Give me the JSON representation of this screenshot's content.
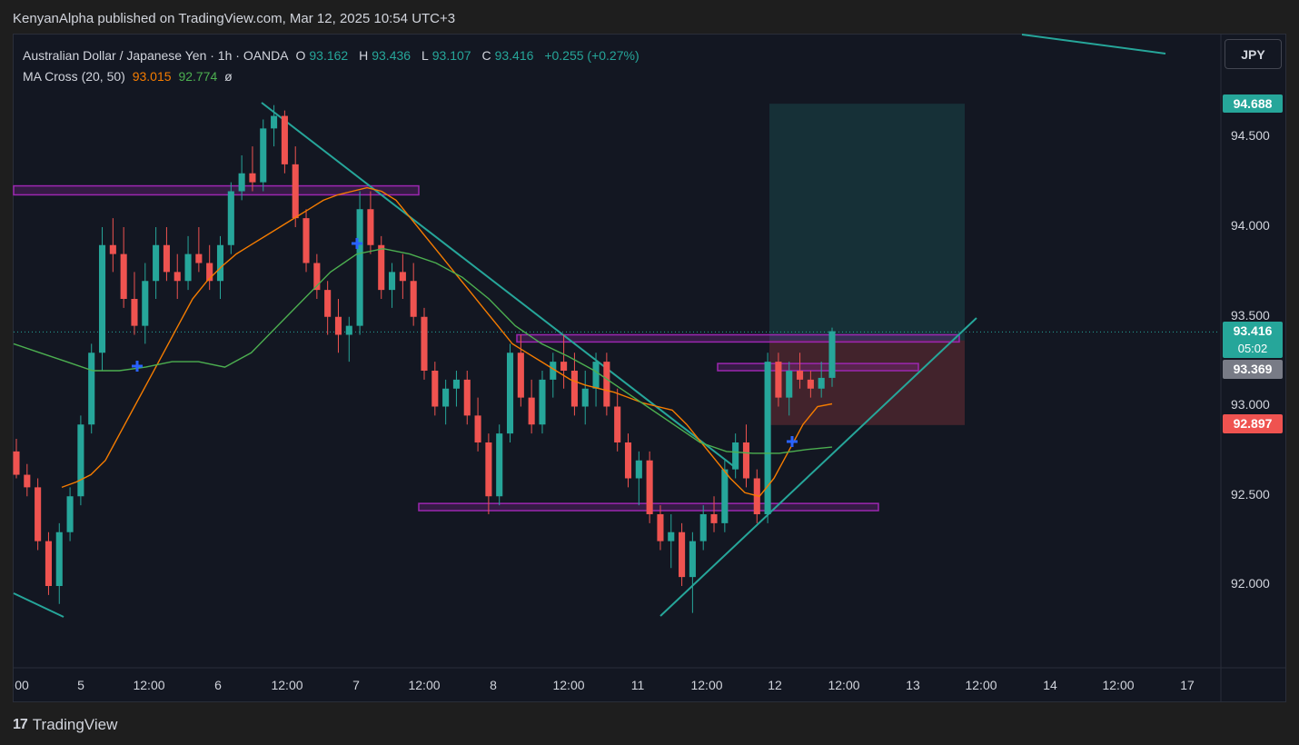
{
  "header": {
    "published": "KenyanAlpha published on TradingView.com, Mar 12, 2025 10:54 UTC+3"
  },
  "legend": {
    "symbol": "Australian Dollar / Japanese Yen · 1h · OANDA",
    "o_label": "O",
    "o_value": "93.162",
    "h_label": "H",
    "h_value": "93.436",
    "l_label": "L",
    "l_value": "93.107",
    "c_label": "C",
    "c_value": "93.416",
    "change": "+0.255 (+0.27%)",
    "ma_label": "MA Cross (20, 50)",
    "ma_fast": "93.015",
    "ma_slow": "92.774",
    "ma_extra": "ø"
  },
  "currency_button": "JPY",
  "price_tags": {
    "target": "94.688",
    "last_price": "93.416",
    "countdown": "05:02",
    "entry": "93.369",
    "stop": "92.897"
  },
  "colors": {
    "up": "#26a69a",
    "down": "#ef5350",
    "ma_fast": "#f57c00",
    "ma_slow": "#4caf50",
    "zone": "#9c27b0",
    "trend": "#26a69a",
    "cross": "#2962ff"
  },
  "chart_data": {
    "type": "candlestick",
    "title": "Australian Dollar / Japanese Yen · 1h · OANDA",
    "ylim": [
      91.5,
      94.9
    ],
    "y_ticks": [
      "92.000",
      "92.500",
      "93.000",
      "93.500",
      "94.000",
      "94.500"
    ],
    "x_ticks": [
      "00",
      "5",
      "12:00",
      "6",
      "12:00",
      "7",
      "12:00",
      "8",
      "12:00",
      "11",
      "12:00",
      "12",
      "12:00",
      "13",
      "12:00",
      "14",
      "12:00",
      "17"
    ],
    "series": [
      {
        "name": "AUDJPY",
        "kind": "ohlc",
        "values": [
          [
            92.75,
            92.82,
            92.6,
            92.62
          ],
          [
            92.62,
            92.68,
            92.5,
            92.55
          ],
          [
            92.55,
            92.6,
            92.2,
            92.25
          ],
          [
            92.25,
            92.3,
            91.95,
            92.0
          ],
          [
            92.0,
            92.35,
            91.9,
            92.3
          ],
          [
            92.3,
            92.55,
            92.25,
            92.5
          ],
          [
            92.5,
            92.95,
            92.45,
            92.9
          ],
          [
            92.9,
            93.35,
            92.85,
            93.3
          ],
          [
            93.3,
            94.0,
            93.2,
            93.9
          ],
          [
            93.9,
            94.05,
            93.75,
            93.85
          ],
          [
            93.85,
            94.0,
            93.55,
            93.6
          ],
          [
            93.6,
            93.75,
            93.4,
            93.45
          ],
          [
            93.45,
            93.8,
            93.35,
            93.7
          ],
          [
            93.7,
            94.0,
            93.6,
            93.9
          ],
          [
            93.9,
            94.0,
            93.7,
            93.75
          ],
          [
            93.75,
            93.85,
            93.6,
            93.7
          ],
          [
            93.7,
            93.95,
            93.65,
            93.85
          ],
          [
            93.85,
            94.0,
            93.75,
            93.8
          ],
          [
            93.8,
            93.9,
            93.65,
            93.7
          ],
          [
            93.7,
            93.95,
            93.6,
            93.9
          ],
          [
            93.9,
            94.25,
            93.85,
            94.2
          ],
          [
            94.2,
            94.4,
            94.15,
            94.3
          ],
          [
            94.3,
            94.45,
            94.2,
            94.25
          ],
          [
            94.25,
            94.6,
            94.2,
            94.55
          ],
          [
            94.55,
            94.68,
            94.45,
            94.62
          ],
          [
            94.62,
            94.65,
            94.3,
            94.35
          ],
          [
            94.35,
            94.45,
            94.0,
            94.05
          ],
          [
            94.05,
            94.1,
            93.75,
            93.8
          ],
          [
            93.8,
            93.85,
            93.6,
            93.65
          ],
          [
            93.65,
            93.7,
            93.4,
            93.5
          ],
          [
            93.5,
            93.6,
            93.3,
            93.4
          ],
          [
            93.4,
            93.5,
            93.25,
            93.45
          ],
          [
            93.45,
            94.2,
            93.4,
            94.1
          ],
          [
            94.1,
            94.2,
            93.85,
            93.9
          ],
          [
            93.9,
            93.95,
            93.6,
            93.65
          ],
          [
            93.65,
            93.8,
            93.55,
            93.75
          ],
          [
            93.75,
            93.85,
            93.6,
            93.7
          ],
          [
            93.7,
            93.8,
            93.45,
            93.5
          ],
          [
            93.5,
            93.55,
            93.15,
            93.2
          ],
          [
            93.2,
            93.25,
            92.95,
            93.0
          ],
          [
            93.0,
            93.15,
            92.9,
            93.1
          ],
          [
            93.1,
            93.2,
            93.0,
            93.15
          ],
          [
            93.15,
            93.2,
            92.9,
            92.95
          ],
          [
            92.95,
            93.05,
            92.75,
            92.8
          ],
          [
            92.8,
            92.85,
            92.4,
            92.5
          ],
          [
            92.5,
            92.9,
            92.45,
            92.85
          ],
          [
            92.85,
            93.35,
            92.8,
            93.3
          ],
          [
            93.3,
            93.4,
            93.0,
            93.05
          ],
          [
            93.05,
            93.15,
            92.85,
            92.9
          ],
          [
            92.9,
            93.2,
            92.85,
            93.15
          ],
          [
            93.15,
            93.3,
            93.05,
            93.25
          ],
          [
            93.25,
            93.4,
            93.1,
            93.2
          ],
          [
            93.2,
            93.3,
            92.95,
            93.0
          ],
          [
            93.0,
            93.2,
            92.9,
            93.1
          ],
          [
            93.1,
            93.3,
            93.0,
            93.25
          ],
          [
            93.25,
            93.3,
            92.95,
            93.0
          ],
          [
            93.0,
            93.1,
            92.75,
            92.8
          ],
          [
            92.8,
            92.85,
            92.55,
            92.6
          ],
          [
            92.6,
            92.75,
            92.45,
            92.7
          ],
          [
            92.7,
            92.75,
            92.35,
            92.4
          ],
          [
            92.4,
            92.45,
            92.2,
            92.25
          ],
          [
            92.25,
            92.4,
            92.1,
            92.3
          ],
          [
            92.3,
            92.35,
            92.0,
            92.05
          ],
          [
            92.05,
            92.3,
            91.85,
            92.25
          ],
          [
            92.25,
            92.45,
            92.2,
            92.4
          ],
          [
            92.4,
            92.5,
            92.3,
            92.35
          ],
          [
            92.35,
            92.7,
            92.3,
            92.65
          ],
          [
            92.65,
            92.85,
            92.6,
            92.8
          ],
          [
            92.8,
            92.9,
            92.55,
            92.6
          ],
          [
            92.6,
            92.65,
            92.35,
            92.4
          ],
          [
            92.4,
            93.3,
            92.35,
            93.25
          ],
          [
            93.25,
            93.3,
            93.0,
            93.05
          ],
          [
            93.05,
            93.25,
            92.95,
            93.2
          ],
          [
            93.2,
            93.3,
            93.1,
            93.15
          ],
          [
            93.15,
            93.2,
            93.05,
            93.1
          ],
          [
            93.1,
            93.25,
            93.05,
            93.16
          ],
          [
            93.16,
            93.44,
            93.11,
            93.42
          ]
        ]
      },
      {
        "name": "MA 20",
        "values": [
          92.55,
          92.58,
          92.62,
          92.7,
          92.85,
          93.0,
          93.15,
          93.3,
          93.45,
          93.6,
          93.7,
          93.78,
          93.85,
          93.9,
          93.95,
          94.0,
          94.05,
          94.1,
          94.15,
          94.18,
          94.2,
          94.22,
          94.2,
          94.15,
          94.05,
          93.95,
          93.85,
          93.75,
          93.65,
          93.55,
          93.45,
          93.35,
          93.3,
          93.25,
          93.2,
          93.15,
          93.12,
          93.1,
          93.08,
          93.05,
          93.02,
          93.0,
          92.98,
          92.9,
          92.8,
          92.7,
          92.6,
          92.52,
          92.5,
          92.6,
          92.75,
          92.9,
          93.0,
          93.015
        ]
      },
      {
        "name": "MA 50",
        "values": [
          93.35,
          93.3,
          93.25,
          93.2,
          93.2,
          93.22,
          93.25,
          93.25,
          93.22,
          93.3,
          93.45,
          93.6,
          93.75,
          93.85,
          93.88,
          93.85,
          93.8,
          93.72,
          93.6,
          93.45,
          93.35,
          93.28,
          93.2,
          93.1,
          93.0,
          92.9,
          92.8,
          92.75,
          92.74,
          92.74,
          92.76,
          92.774
        ]
      }
    ],
    "zones": [
      {
        "name": "resistance-zone-upper",
        "from": 94.18,
        "to": 94.23
      },
      {
        "name": "resistance-zone-mid",
        "from": 93.36,
        "to": 93.4
      },
      {
        "name": "resistance-zone-entry",
        "from": 93.2,
        "to": 93.24
      },
      {
        "name": "support-zone",
        "from": 92.42,
        "to": 92.46
      }
    ],
    "position": {
      "type": "long",
      "entry": 93.369,
      "target": 94.688,
      "stop": 92.897
    },
    "trendlines": [
      "descending",
      "ascending",
      "lower-left",
      "upper-right"
    ]
  }
}
